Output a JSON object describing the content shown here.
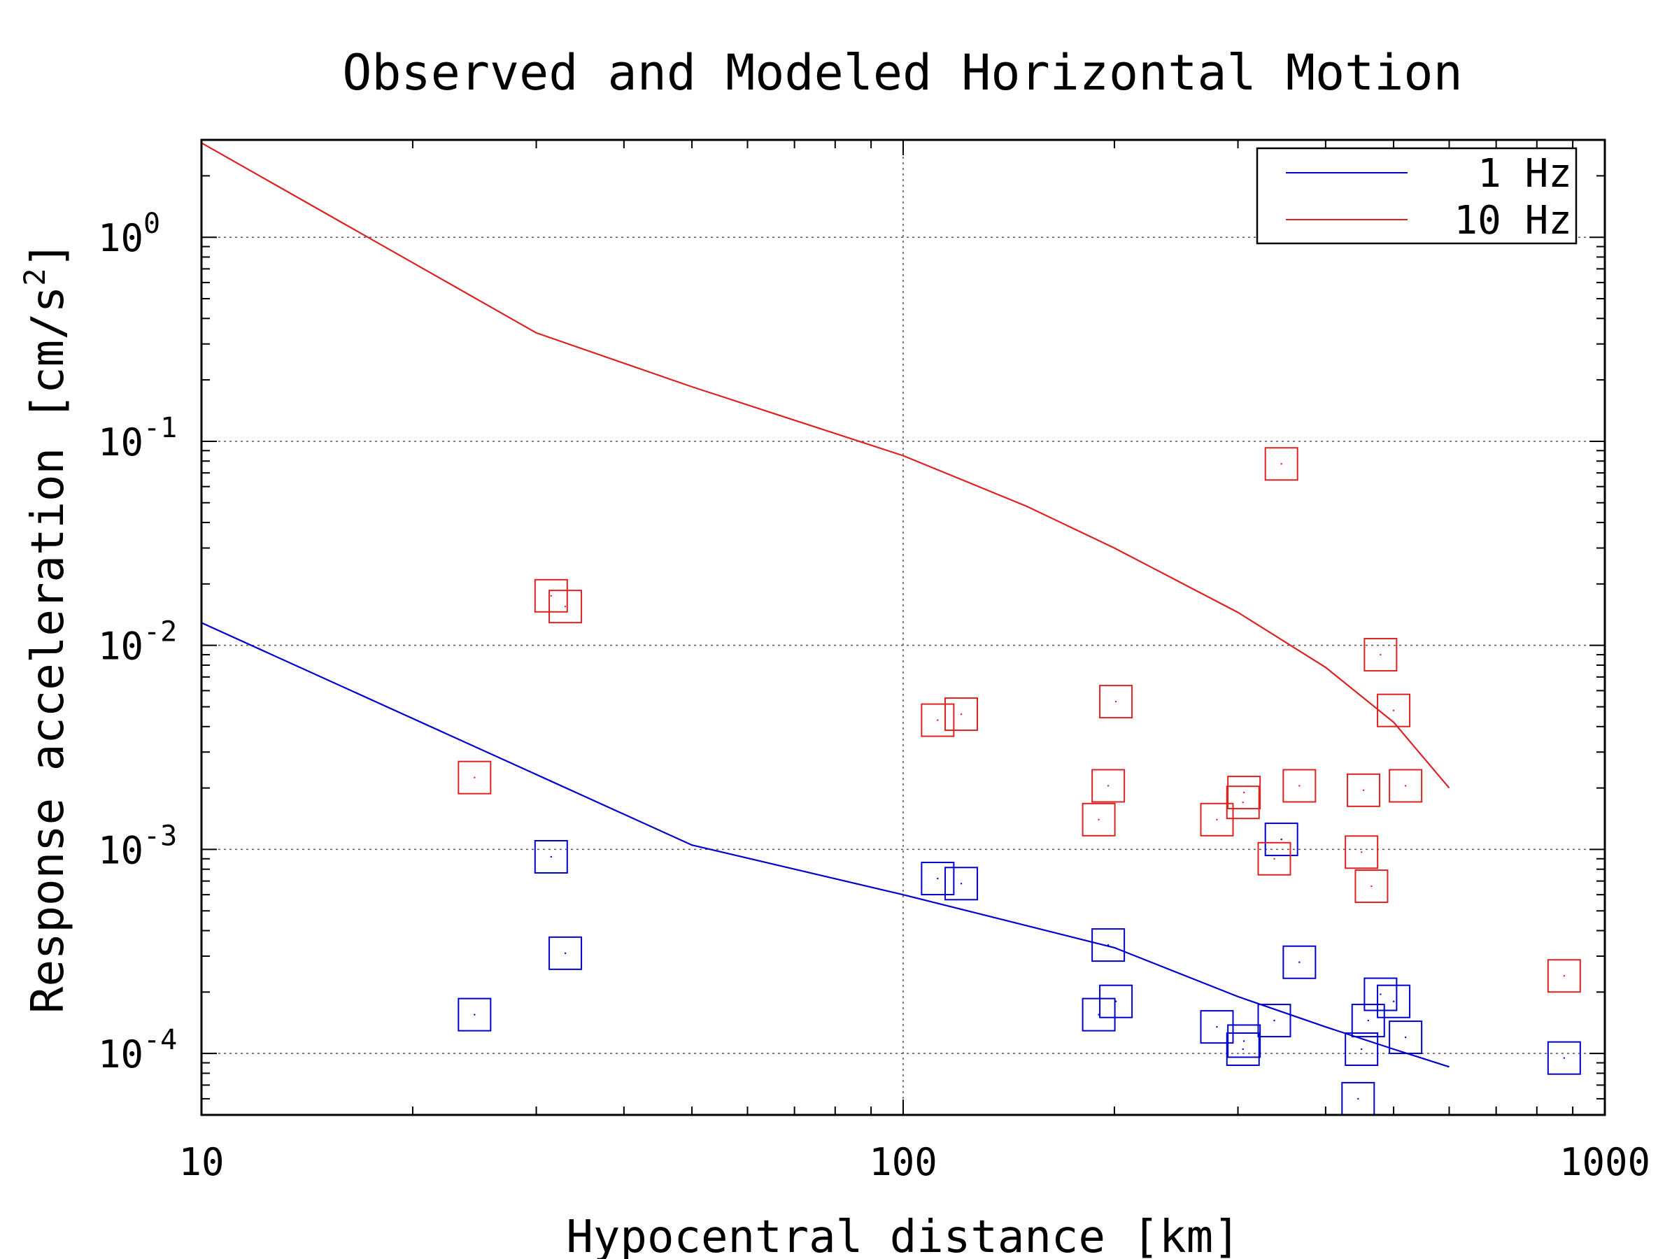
{
  "chart_data": {
    "type": "scatter",
    "title": "Observed and Modeled Horizontal Motion",
    "xlabel": "Hypocentral distance [km]",
    "ylabel_main": "Response acceleration [cm/s",
    "ylabel_sup": "2",
    "ylabel_end": "]",
    "xscale": "log",
    "yscale": "log",
    "xlim": [
      10,
      1000
    ],
    "ylim": [
      5e-05,
      3
    ],
    "grid": true,
    "legend_position": "top-right",
    "x_ticks": [
      {
        "value": 10,
        "label": "10"
      },
      {
        "value": 100,
        "label": "100"
      },
      {
        "value": 1000,
        "label": "1000"
      }
    ],
    "y_ticks": [
      {
        "value": 1,
        "base": "10",
        "exp": "0"
      },
      {
        "value": 0.1,
        "base": "10",
        "exp": "-1"
      },
      {
        "value": 0.01,
        "base": "10",
        "exp": "-2"
      },
      {
        "value": 0.001,
        "base": "10",
        "exp": "-3"
      },
      {
        "value": 0.0001,
        "base": "10",
        "exp": "-4"
      }
    ],
    "series": [
      {
        "name": "1 Hz",
        "color": "#0000cc",
        "model_line": [
          [
            10,
            0.0129
          ],
          [
            50,
            0.00105
          ],
          [
            100,
            0.0006
          ],
          [
            200,
            0.00033
          ],
          [
            300,
            0.00019
          ],
          [
            400,
            0.000135
          ],
          [
            500,
            0.000105
          ],
          [
            600,
            8.6e-05
          ]
        ],
        "observed": [
          [
            24.5,
            0.000155
          ],
          [
            31.5,
            0.00092
          ],
          [
            33,
            0.00031
          ],
          [
            112,
            0.00072
          ],
          [
            121,
            0.00068
          ],
          [
            190,
            0.000155
          ],
          [
            196,
            0.00034
          ],
          [
            201,
            0.00018
          ],
          [
            280,
            0.000135
          ],
          [
            305,
            0.000105
          ],
          [
            306,
            0.000115
          ],
          [
            338,
            0.000145
          ],
          [
            346,
            0.00112
          ],
          [
            367,
            0.00028
          ],
          [
            445,
            6e-05
          ],
          [
            450,
            0.000105
          ],
          [
            460,
            0.000145
          ],
          [
            479,
            0.000195
          ],
          [
            500,
            0.00018
          ],
          [
            520,
            0.00012
          ],
          [
            875,
            9.5e-05
          ]
        ]
      },
      {
        "name": "10 Hz",
        "color": "#dd2222",
        "model_line": [
          [
            10,
            2.9
          ],
          [
            20,
            0.75
          ],
          [
            30,
            0.34
          ],
          [
            50,
            0.185
          ],
          [
            100,
            0.085
          ],
          [
            150,
            0.048
          ],
          [
            200,
            0.03
          ],
          [
            300,
            0.0145
          ],
          [
            400,
            0.0078
          ],
          [
            500,
            0.0042
          ],
          [
            600,
            0.002
          ]
        ],
        "observed": [
          [
            24.5,
            0.00225
          ],
          [
            31.5,
            0.0175
          ],
          [
            33,
            0.0155
          ],
          [
            112,
            0.0043
          ],
          [
            121,
            0.0046
          ],
          [
            190,
            0.0014
          ],
          [
            196,
            0.00205
          ],
          [
            201,
            0.0053
          ],
          [
            280,
            0.0014
          ],
          [
            305,
            0.0017
          ],
          [
            306,
            0.0019
          ],
          [
            338,
            0.0009
          ],
          [
            346,
            0.0775
          ],
          [
            367,
            0.00205
          ],
          [
            450,
            0.00097
          ],
          [
            453,
            0.00195
          ],
          [
            465,
            0.00066
          ],
          [
            479,
            0.009
          ],
          [
            500,
            0.0048
          ],
          [
            520,
            0.00205
          ],
          [
            875,
            0.00024
          ]
        ]
      }
    ]
  }
}
